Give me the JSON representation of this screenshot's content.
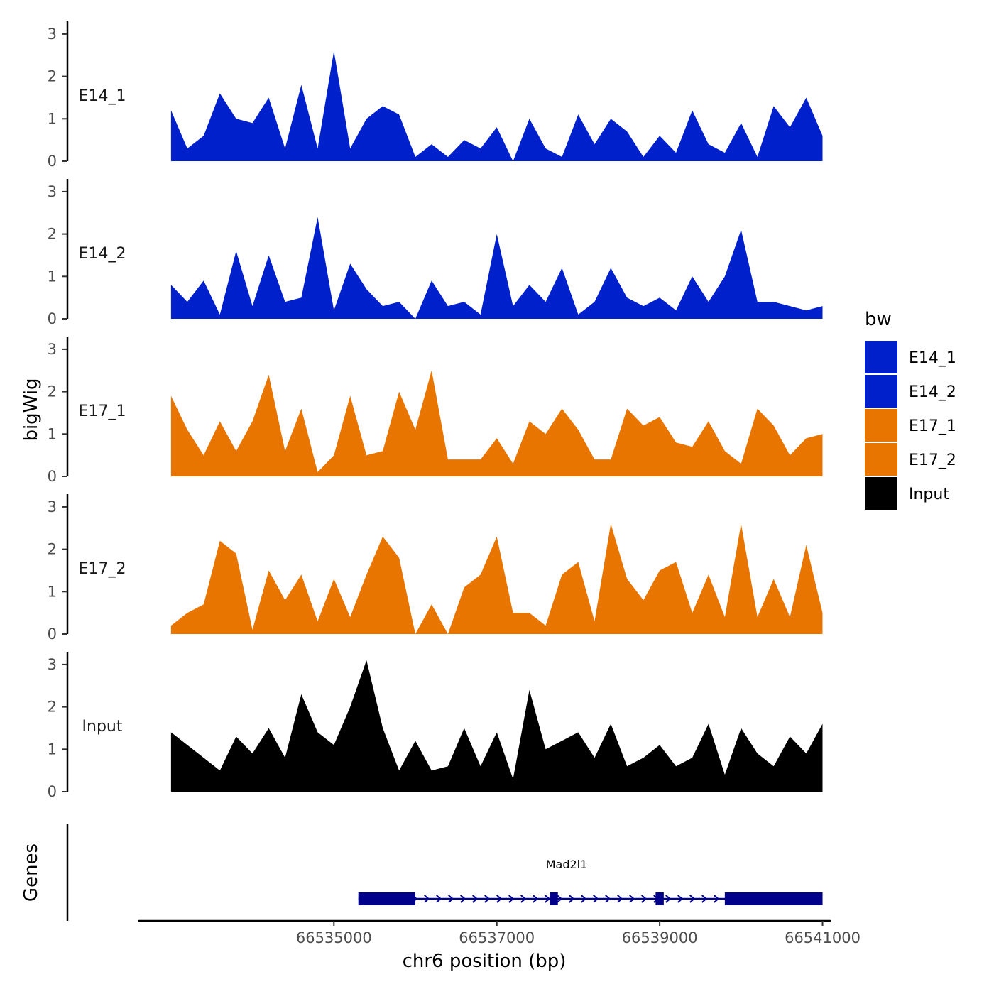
{
  "chart_data": {
    "type": "area",
    "title": "",
    "ylabel": "bigWig",
    "genes_label": "Genes",
    "xlabel": "chr6 position (bp)",
    "xlim": [
      66532600,
      66541100
    ],
    "ylim": [
      0,
      3.3
    ],
    "y_ticks": [
      0,
      1,
      2,
      3
    ],
    "x_ticks": [
      66535000,
      66537000,
      66539000,
      66541000
    ],
    "x_tick_labels": [
      "66535000",
      "66537000",
      "66539000",
      "66541000"
    ],
    "legend": {
      "title": "bw",
      "placement": "right",
      "entries": [
        {
          "label": "E14_1",
          "color": "#0020cc"
        },
        {
          "label": "E14_2",
          "color": "#0020cc"
        },
        {
          "label": "E17_1",
          "color": "#e87500"
        },
        {
          "label": "E17_2",
          "color": "#e87500"
        },
        {
          "label": "Input",
          "color": "#000000"
        }
      ]
    },
    "x": [
      66533000,
      66533200,
      66533400,
      66533600,
      66533800,
      66534000,
      66534200,
      66534400,
      66534600,
      66534800,
      66535000,
      66535200,
      66535400,
      66535600,
      66535800,
      66536000,
      66536200,
      66536400,
      66536600,
      66536800,
      66537000,
      66537200,
      66537400,
      66537600,
      66537800,
      66538000,
      66538200,
      66538400,
      66538600,
      66538800,
      66539000,
      66539200,
      66539400,
      66539600,
      66539800,
      66540000,
      66540200,
      66540400,
      66540600,
      66540800,
      66541000
    ],
    "series": [
      {
        "name": "E14_1",
        "color": "#0020cc",
        "values": [
          1.2,
          0.3,
          0.6,
          1.6,
          1.0,
          0.9,
          1.5,
          0.3,
          1.8,
          0.3,
          2.6,
          0.3,
          1.0,
          1.3,
          1.1,
          0.1,
          0.4,
          0.1,
          0.5,
          0.3,
          0.8,
          0.0,
          1.0,
          0.3,
          0.1,
          1.1,
          0.4,
          1.0,
          0.7,
          0.1,
          0.6,
          0.2,
          1.2,
          0.4,
          0.2,
          0.9,
          0.1,
          1.3,
          0.8,
          1.5,
          0.6
        ]
      },
      {
        "name": "E14_2",
        "color": "#0020cc",
        "values": [
          0.8,
          0.4,
          0.9,
          0.1,
          1.6,
          0.3,
          1.5,
          0.4,
          0.5,
          2.4,
          0.2,
          1.3,
          0.7,
          0.3,
          0.4,
          0.0,
          0.9,
          0.3,
          0.4,
          0.1,
          2.0,
          0.3,
          0.8,
          0.4,
          1.2,
          0.1,
          0.4,
          1.2,
          0.5,
          0.3,
          0.5,
          0.2,
          1.0,
          0.4,
          1.0,
          2.1,
          0.4,
          0.4,
          0.3,
          0.2,
          0.3
        ]
      },
      {
        "name": "E17_1",
        "color": "#e87500",
        "values": [
          1.9,
          1.1,
          0.5,
          1.3,
          0.6,
          1.3,
          2.4,
          0.6,
          1.6,
          0.1,
          0.5,
          1.9,
          0.5,
          0.6,
          2.0,
          1.1,
          2.5,
          0.4,
          0.4,
          0.4,
          0.9,
          0.3,
          1.3,
          1.0,
          1.6,
          1.1,
          0.4,
          0.4,
          1.6,
          1.2,
          1.4,
          0.8,
          0.7,
          1.3,
          0.6,
          0.3,
          1.6,
          1.2,
          0.5,
          0.9,
          1.0
        ]
      },
      {
        "name": "E17_2",
        "color": "#e87500",
        "values": [
          0.2,
          0.5,
          0.7,
          2.2,
          1.9,
          0.1,
          1.5,
          0.8,
          1.4,
          0.3,
          1.3,
          0.4,
          1.4,
          2.3,
          1.8,
          0.0,
          0.7,
          0.0,
          1.1,
          1.4,
          2.3,
          0.5,
          0.5,
          0.2,
          1.4,
          1.7,
          0.3,
          2.6,
          1.3,
          0.8,
          1.5,
          1.7,
          0.5,
          1.4,
          0.4,
          2.6,
          0.4,
          1.3,
          0.4,
          2.1,
          0.5
        ]
      },
      {
        "name": "Input",
        "color": "#000000",
        "values": [
          1.4,
          1.1,
          0.8,
          0.5,
          1.3,
          0.9,
          1.5,
          0.8,
          2.3,
          1.4,
          1.1,
          2.0,
          3.1,
          1.5,
          0.5,
          1.2,
          0.5,
          0.6,
          1.5,
          0.6,
          1.4,
          0.3,
          2.4,
          1.0,
          1.2,
          1.4,
          0.8,
          1.6,
          0.6,
          0.8,
          1.1,
          0.6,
          0.8,
          1.6,
          0.4,
          1.5,
          0.9,
          0.6,
          1.3,
          0.9,
          1.6
        ]
      }
    ],
    "gene_track": {
      "gene_name": "Mad2l1",
      "color": "#00008b",
      "start": 66535300,
      "end": 66541000,
      "strand": "+",
      "exons": [
        [
          66535300,
          66536000
        ],
        [
          66537650,
          66537750
        ],
        [
          66538950,
          66539050
        ],
        [
          66539800,
          66541000
        ]
      ]
    }
  }
}
